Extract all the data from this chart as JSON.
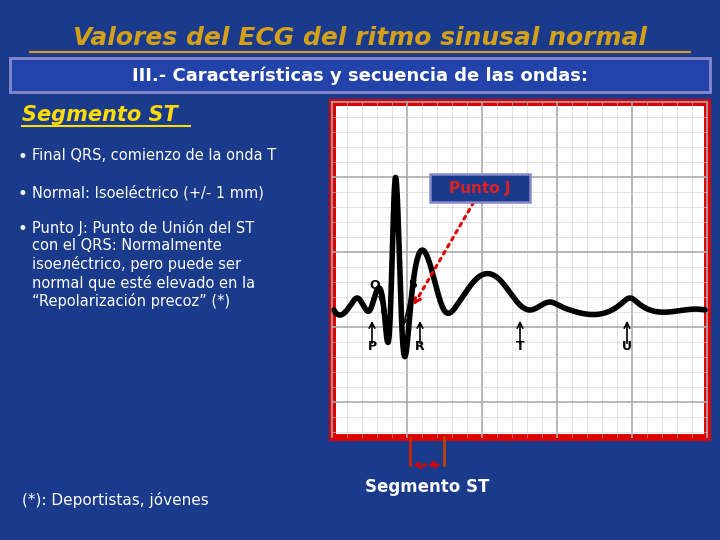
{
  "title": "Valores del ECG del ritmo sinusal normal",
  "subtitle": "III.- Características y secuencia de las ondas:",
  "section_title": "Segmento ST",
  "footnote": "(*): Deportistas, jóvenes",
  "punto_j_label": "Punto J",
  "segmento_st_label": "Segmento ST",
  "bg_color": "#1a3a8c",
  "title_color": "#d4a017",
  "subtitle_bg": "#2244aa",
  "subtitle_border": "#8888cc",
  "section_title_color": "#ffdd00",
  "bullet_color": "#ffffff",
  "footnote_color": "#ffffff",
  "ecg_box_border": "#dd0000",
  "punto_j_box_bg": "#1a3a8c",
  "punto_j_box_border": "#8888cc",
  "punto_j_text_color": "#dd2222",
  "segmento_st_text_color": "#ffffff",
  "dotted_arrow_color": "#dd0000",
  "bullet1": "Final QRS, comienzo de la onda T",
  "bullet2": "Normal: Isoeléctrico (+/- 1 mm)",
  "bullet3a": "Punto J: Punto de Unión del ST con el QRS: Normalmente",
  "bullet3b": "isoелéctrico, pero puede ser normal que esté elevado en la",
  "bullet3c": "“Repolarización precoz” (*)"
}
